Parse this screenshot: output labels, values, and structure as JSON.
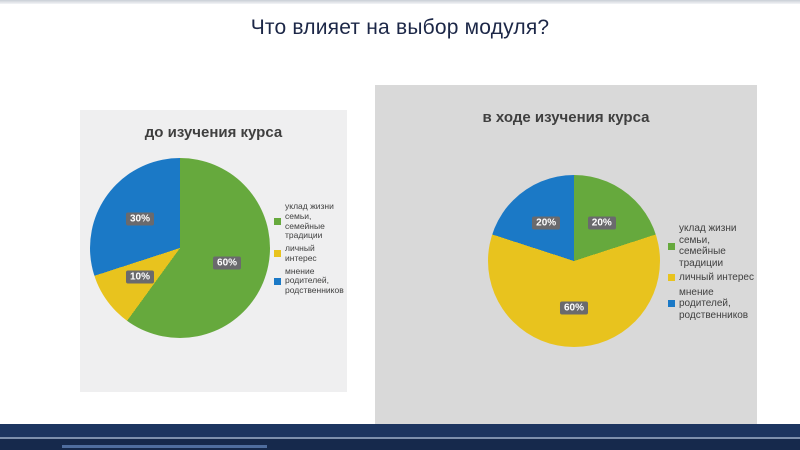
{
  "slide": {
    "title": "Что влияет на выбор модуля?"
  },
  "chart_data": [
    {
      "type": "pie",
      "title": "до изучения курса",
      "labels": [
        "уклад жизни семьи, семейные традиции",
        "личный интерес",
        "мнение родителей, родственников"
      ],
      "values": [
        60,
        10,
        30
      ],
      "data_labels": [
        "60%",
        "10%",
        "30%"
      ],
      "colors": [
        "#66a93d",
        "#e8c31e",
        "#1b79c6"
      ],
      "legend_position": "right",
      "start_angle_deg": 0,
      "label_radius": 0.55
    },
    {
      "type": "pie",
      "title": "в ходе изучения курса",
      "labels": [
        "уклад жизни семьи, семейные традиции",
        "личный интерес",
        "мнение родителей, родственников"
      ],
      "values": [
        20,
        60,
        20
      ],
      "data_labels": [
        "20%",
        "60%",
        "20%"
      ],
      "colors": [
        "#66a93d",
        "#e8c31e",
        "#1b79c6"
      ],
      "legend_position": "right",
      "start_angle_deg": 0,
      "label_radius": 0.55
    }
  ]
}
